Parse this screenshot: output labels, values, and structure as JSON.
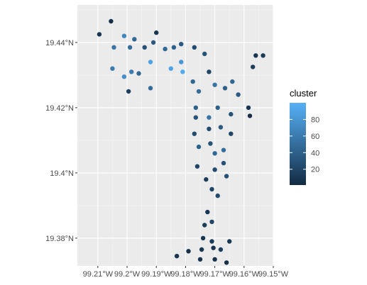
{
  "chart_data": {
    "type": "scatter",
    "xlim": [
      -99.217,
      -99.15
    ],
    "ylim": [
      19.3715,
      19.4515
    ],
    "x_ticks": [
      -99.21,
      -99.2,
      -99.19,
      -99.18,
      -99.17,
      -99.16,
      -99.15
    ],
    "x_tick_labels": [
      "99.21°W",
      "99.2°W",
      "99.19°W",
      "99.18°W",
      "99.17°W",
      "99.16°W",
      "99.15°W"
    ],
    "y_ticks": [
      19.38,
      19.4,
      19.42,
      19.44
    ],
    "y_tick_labels": [
      "19.38°N",
      "19.4°N",
      "19.42°N",
      "19.44°N"
    ],
    "grid": true,
    "color_scale": {
      "low": "#132b43",
      "high": "#56b1f7",
      "domain": [
        1,
        100
      ]
    },
    "legend": {
      "title": "cluster",
      "position": "right",
      "breaks": [
        80,
        60,
        40,
        20
      ]
    },
    "clusters": [
      {
        "x": -99.2095,
        "y": 19.4425,
        "c": 8
      },
      {
        "x": -99.2055,
        "y": 19.4465,
        "c": 5
      },
      {
        "x": -99.2045,
        "y": 19.4385,
        "c": 55
      },
      {
        "x": -99.201,
        "y": 19.442,
        "c": 70
      },
      {
        "x": -99.199,
        "y": 19.4385,
        "c": 50
      },
      {
        "x": -99.1975,
        "y": 19.441,
        "c": 45
      },
      {
        "x": -99.194,
        "y": 19.4385,
        "c": 30
      },
      {
        "x": -99.191,
        "y": 19.44,
        "c": 35
      },
      {
        "x": -99.19,
        "y": 19.443,
        "c": 10
      },
      {
        "x": -99.187,
        "y": 19.438,
        "c": 45
      },
      {
        "x": -99.184,
        "y": 19.4385,
        "c": 40
      },
      {
        "x": -99.1815,
        "y": 19.4395,
        "c": 35
      },
      {
        "x": -99.177,
        "y": 19.4385,
        "c": 25
      },
      {
        "x": -99.1735,
        "y": 19.4365,
        "c": 30
      },
      {
        "x": -99.205,
        "y": 19.432,
        "c": 60
      },
      {
        "x": -99.201,
        "y": 19.4295,
        "c": 75
      },
      {
        "x": -99.1985,
        "y": 19.431,
        "c": 60
      },
      {
        "x": -99.196,
        "y": 19.4305,
        "c": 45
      },
      {
        "x": -99.1995,
        "y": 19.425,
        "c": 15
      },
      {
        "x": -99.192,
        "y": 19.426,
        "c": 50
      },
      {
        "x": -99.192,
        "y": 19.434,
        "c": 90
      },
      {
        "x": -99.185,
        "y": 19.432,
        "c": 90
      },
      {
        "x": -99.181,
        "y": 19.431,
        "c": 95
      },
      {
        "x": -99.1815,
        "y": 19.434,
        "c": 80
      },
      {
        "x": -99.1775,
        "y": 19.428,
        "c": 45
      },
      {
        "x": -99.1755,
        "y": 19.425,
        "c": 50
      },
      {
        "x": -99.172,
        "y": 19.431,
        "c": 20
      },
      {
        "x": -99.17,
        "y": 19.427,
        "c": 55
      },
      {
        "x": -99.1665,
        "y": 19.426,
        "c": 40
      },
      {
        "x": -99.164,
        "y": 19.428,
        "c": 45
      },
      {
        "x": -99.162,
        "y": 19.424,
        "c": 35
      },
      {
        "x": -99.157,
        "y": 19.4325,
        "c": 15
      },
      {
        "x": -99.156,
        "y": 19.436,
        "c": 10
      },
      {
        "x": -99.1535,
        "y": 19.436,
        "c": 12
      },
      {
        "x": -99.1585,
        "y": 19.42,
        "c": 8
      },
      {
        "x": -99.158,
        "y": 19.4175,
        "c": 5
      },
      {
        "x": -99.1765,
        "y": 19.42,
        "c": 40
      },
      {
        "x": -99.1765,
        "y": 19.417,
        "c": 30
      },
      {
        "x": -99.172,
        "y": 19.417,
        "c": 55
      },
      {
        "x": -99.172,
        "y": 19.4135,
        "c": 25
      },
      {
        "x": -99.169,
        "y": 19.42,
        "c": 40
      },
      {
        "x": -99.168,
        "y": 19.414,
        "c": 35
      },
      {
        "x": -99.1645,
        "y": 19.418,
        "c": 30
      },
      {
        "x": -99.1645,
        "y": 19.412,
        "c": 20
      },
      {
        "x": -99.177,
        "y": 19.412,
        "c": 25
      },
      {
        "x": -99.1755,
        "y": 19.408,
        "c": 40
      },
      {
        "x": -99.1715,
        "y": 19.409,
        "c": 30
      },
      {
        "x": -99.17,
        "y": 19.406,
        "c": 45
      },
      {
        "x": -99.167,
        "y": 19.407,
        "c": 50
      },
      {
        "x": -99.167,
        "y": 19.403,
        "c": 30
      },
      {
        "x": -99.176,
        "y": 19.402,
        "c": 20
      },
      {
        "x": -99.17,
        "y": 19.401,
        "c": 25
      },
      {
        "x": -99.173,
        "y": 19.398,
        "c": 15
      },
      {
        "x": -99.166,
        "y": 19.399,
        "c": 30
      },
      {
        "x": -99.171,
        "y": 19.395,
        "c": 20
      },
      {
        "x": -99.169,
        "y": 19.393,
        "c": 25
      },
      {
        "x": -99.1725,
        "y": 19.388,
        "c": 10
      },
      {
        "x": -99.1735,
        "y": 19.384,
        "c": 15
      },
      {
        "x": -99.171,
        "y": 19.385,
        "c": 20
      },
      {
        "x": -99.174,
        "y": 19.38,
        "c": 10
      },
      {
        "x": -99.171,
        "y": 19.379,
        "c": 12
      },
      {
        "x": -99.1745,
        "y": 19.3765,
        "c": 10
      },
      {
        "x": -99.1705,
        "y": 19.377,
        "c": 8
      },
      {
        "x": -99.168,
        "y": 19.3765,
        "c": 15
      },
      {
        "x": -99.165,
        "y": 19.379,
        "c": 10
      },
      {
        "x": -99.179,
        "y": 19.376,
        "c": 5
      },
      {
        "x": -99.175,
        "y": 19.3735,
        "c": 8
      },
      {
        "x": -99.17,
        "y": 19.3735,
        "c": 6
      },
      {
        "x": -99.166,
        "y": 19.3725,
        "c": 5
      },
      {
        "x": -99.183,
        "y": 19.3745,
        "c": 10
      }
    ]
  }
}
